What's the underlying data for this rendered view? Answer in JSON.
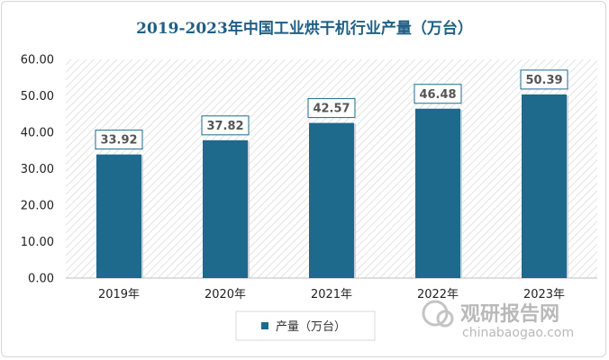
{
  "chart_data": {
    "type": "bar",
    "title": "2019-2023年中国工业烘干机行业产量（万台）",
    "categories": [
      "2019年",
      "2020年",
      "2021年",
      "2022年",
      "2023年"
    ],
    "series": [
      {
        "name": "产量（万台）",
        "values": [
          33.92,
          37.82,
          42.57,
          46.48,
          50.39
        ]
      }
    ],
    "value_labels": [
      "33.92",
      "37.82",
      "42.57",
      "46.48",
      "50.39"
    ],
    "ylim": [
      0,
      60
    ],
    "yticks": [
      "0.00",
      "10.00",
      "20.00",
      "30.00",
      "40.00",
      "50.00",
      "60.00"
    ],
    "xlabel": "",
    "ylabel": "",
    "legend_position": "bottom-center",
    "plot_background": "diagonal-hatch",
    "colors": {
      "title": "#1f5f86",
      "bar": "#1d6a8c",
      "label_border": "#1d6a8c"
    }
  },
  "watermark": {
    "cn": "观研报告网",
    "en": "chinabaogao.com"
  }
}
